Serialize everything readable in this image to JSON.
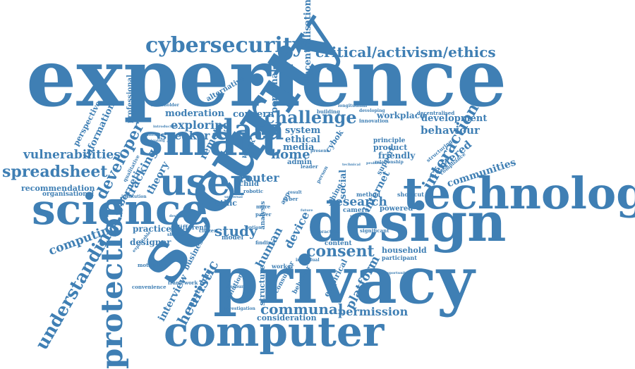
{
  "word_color": "#3f7fb4",
  "background_color": "#ffffff",
  "words": [
    {
      "text": "experience",
      "orientation": "horizontal"
    },
    {
      "text": "security",
      "orientation": "rotated"
    },
    {
      "text": "privacy",
      "orientation": "horizontal"
    },
    {
      "text": "computer",
      "orientation": "horizontal"
    },
    {
      "text": "design",
      "orientation": "horizontal"
    },
    {
      "text": "technology",
      "orientation": "horizontal"
    },
    {
      "text": "smart",
      "orientation": "horizontal"
    },
    {
      "text": "science",
      "orientation": "horizontal"
    },
    {
      "text": "user",
      "orientation": "horizontal"
    },
    {
      "text": "protection",
      "orientation": "vertical"
    },
    {
      "text": "data",
      "orientation": "horizontal"
    },
    {
      "text": "cybersecurity",
      "orientation": "horizontal"
    },
    {
      "text": "critical/activism/ethics",
      "orientation": "horizontal"
    },
    {
      "text": "spreadsheet",
      "orientation": "horizontal"
    },
    {
      "text": "understanding",
      "orientation": "rotated"
    },
    {
      "text": "challenge",
      "orientation": "horizontal"
    },
    {
      "text": "interaction",
      "orientation": "rotated"
    },
    {
      "text": "vulnerabilities",
      "orientation": "horizontal"
    },
    {
      "text": "developer",
      "orientation": "rotated"
    },
    {
      "text": "consent",
      "orientation": "horizontal"
    },
    {
      "text": "communal",
      "orientation": "horizontal"
    },
    {
      "text": "permission",
      "orientation": "horizontal"
    },
    {
      "text": "heuristic",
      "orientation": "rotated"
    },
    {
      "text": "study",
      "orientation": "horizontal"
    },
    {
      "text": "research",
      "orientation": "horizontal"
    },
    {
      "text": "platform",
      "orientation": "rotated"
    },
    {
      "text": "computing",
      "orientation": "rotated"
    },
    {
      "text": "speaker",
      "orientation": "horizontal"
    },
    {
      "text": "exploring",
      "orientation": "horizontal"
    },
    {
      "text": "home",
      "orientation": "horizontal"
    },
    {
      "text": "behaviour",
      "orientation": "horizontal"
    },
    {
      "text": "centered",
      "orientation": "rotated"
    },
    {
      "text": "communities",
      "orientation": "rotated"
    },
    {
      "text": "development",
      "orientation": "horizontal"
    },
    {
      "text": "decentralisation",
      "orientation": "vertical"
    },
    {
      "text": "moderation",
      "orientation": "horizontal"
    },
    {
      "text": "concern",
      "orientation": "horizontal"
    },
    {
      "text": "system",
      "orientation": "horizontal"
    },
    {
      "text": "ethical",
      "orientation": "horizontal"
    },
    {
      "text": "media",
      "orientation": "horizontal"
    },
    {
      "text": "practice",
      "orientation": "horizontal"
    },
    {
      "text": "designer",
      "orientation": "horizontal"
    },
    {
      "text": "tracking",
      "orientation": "rotated"
    },
    {
      "text": "cybernetic",
      "orientation": "rotated"
    },
    {
      "text": "information",
      "orientation": "rotated"
    },
    {
      "text": "remote",
      "orientation": "rotated"
    },
    {
      "text": "router",
      "orientation": "horizontal"
    },
    {
      "text": "human",
      "orientation": "rotated"
    },
    {
      "text": "device",
      "orientation": "rotated"
    },
    {
      "text": "internet",
      "orientation": "rotated"
    },
    {
      "text": "workplace",
      "orientation": "horizontal"
    },
    {
      "text": "household",
      "orientation": "horizontal"
    },
    {
      "text": "recommendation",
      "orientation": "horizontal"
    },
    {
      "text": "organisational",
      "orientation": "horizontal"
    },
    {
      "text": "theory",
      "orientation": "rotated"
    },
    {
      "text": "interview",
      "orientation": "rotated"
    },
    {
      "text": "mastodon",
      "orientation": "rotated"
    },
    {
      "text": "personal",
      "orientation": "vertical"
    },
    {
      "text": "professional",
      "orientation": "vertical"
    },
    {
      "text": "perspective",
      "orientation": "rotated"
    },
    {
      "text": "alternative",
      "orientation": "rotated"
    },
    {
      "text": "friendly",
      "orientation": "horizontal"
    },
    {
      "text": "product",
      "orientation": "horizontal"
    },
    {
      "text": "cybok",
      "orientation": "rotated"
    },
    {
      "text": "admin",
      "orientation": "horizontal"
    },
    {
      "text": "social",
      "orientation": "vertical"
    },
    {
      "text": "powered",
      "orientation": "horizontal"
    },
    {
      "text": "camera",
      "orientation": "horizontal"
    },
    {
      "text": "content",
      "orientation": "horizontal"
    },
    {
      "text": "consideration",
      "orientation": "horizontal"
    },
    {
      "text": "structure",
      "orientation": "vertical"
    },
    {
      "text": "empirical",
      "orientation": "rotated"
    },
    {
      "text": "solution",
      "orientation": "rotated"
    },
    {
      "text": "business",
      "orientation": "rotated"
    },
    {
      "text": "different",
      "orientation": "horizontal"
    },
    {
      "text": "model",
      "orientation": "horizontal"
    },
    {
      "text": "ethic",
      "orientation": "horizontal"
    },
    {
      "text": "child",
      "orientation": "horizontal"
    },
    {
      "text": "work",
      "orientation": "rotated"
    },
    {
      "text": "analysis",
      "orientation": "vertical"
    },
    {
      "text": "thing",
      "orientation": "rotated"
    },
    {
      "text": "principle",
      "orientation": "horizontal"
    },
    {
      "text": "support",
      "orientation": "rotated"
    },
    {
      "text": "significant",
      "orientation": "horizontal"
    },
    {
      "text": "participant",
      "orientation": "horizontal"
    },
    {
      "text": "shortcut",
      "orientation": "horizontal"
    },
    {
      "text": "method",
      "orientation": "horizontal"
    },
    {
      "text": "stakeholder",
      "orientation": "horizontal"
    },
    {
      "text": "building",
      "orientation": "horizontal"
    },
    {
      "text": "innovation",
      "orientation": "horizontal"
    },
    {
      "text": "developing",
      "orientation": "horizontal"
    },
    {
      "text": "longitudinal",
      "orientation": "horizontal"
    },
    {
      "text": "decentralised",
      "orientation": "horizontal"
    },
    {
      "text": "relationship",
      "orientation": "horizontal"
    },
    {
      "text": "compliance",
      "orientation": "rotated"
    },
    {
      "text": "structuring",
      "orientation": "rotated"
    },
    {
      "text": "framework",
      "orientation": "horizontal"
    },
    {
      "text": "motivation",
      "orientation": "horizontal"
    },
    {
      "text": "convenience",
      "orientation": "horizontal"
    },
    {
      "text": "investigation",
      "orientation": "horizontal"
    },
    {
      "text": "discount",
      "orientation": "horizontal"
    },
    {
      "text": "citizen",
      "orientation": "horizontal"
    },
    {
      "text": "shadow",
      "orientation": "horizontal"
    },
    {
      "text": "institution",
      "orientation": "horizontal"
    },
    {
      "text": "finding",
      "orientation": "horizontal"
    },
    {
      "text": "worker",
      "orientation": "horizontal"
    },
    {
      "text": "individual",
      "orientation": "horizontal"
    },
    {
      "text": "behavior",
      "orientation": "rotated"
    },
    {
      "text": "consumer",
      "orientation": "rotated"
    },
    {
      "text": "robotic",
      "orientation": "horizontal"
    },
    {
      "text": "cyber",
      "orientation": "horizontal"
    },
    {
      "text": "more",
      "orientation": "horizontal"
    },
    {
      "text": "app",
      "orientation": "rotated"
    },
    {
      "text": "paper",
      "orientation": "horizontal"
    },
    {
      "text": "option",
      "orientation": "horizontal"
    },
    {
      "text": "person",
      "orientation": "rotated"
    },
    {
      "text": "leader",
      "orientation": "horizontal"
    },
    {
      "text": "practical",
      "orientation": "horizontal"
    },
    {
      "text": "result",
      "orientation": "horizontal"
    },
    {
      "text": "present",
      "orientation": "horizontal"
    },
    {
      "text": "designed",
      "orientation": "horizontal"
    },
    {
      "text": "exploitable",
      "orientation": "rotated"
    },
    {
      "text": "introduction",
      "orientation": "horizontal"
    },
    {
      "text": "navigating",
      "orientation": "horizontal"
    },
    {
      "text": "informing",
      "orientation": "horizontal"
    },
    {
      "text": "qualitative",
      "orientation": "rotated"
    },
    {
      "text": "universal",
      "orientation": "horizontal"
    },
    {
      "text": "technical",
      "orientation": "horizontal"
    },
    {
      "text": "opportunities",
      "orientation": "horizontal"
    },
    {
      "text": "problem",
      "orientation": "horizontal"
    },
    {
      "text": "effect",
      "orientation": "horizontal"
    },
    {
      "text": "future",
      "orientation": "horizontal"
    }
  ]
}
